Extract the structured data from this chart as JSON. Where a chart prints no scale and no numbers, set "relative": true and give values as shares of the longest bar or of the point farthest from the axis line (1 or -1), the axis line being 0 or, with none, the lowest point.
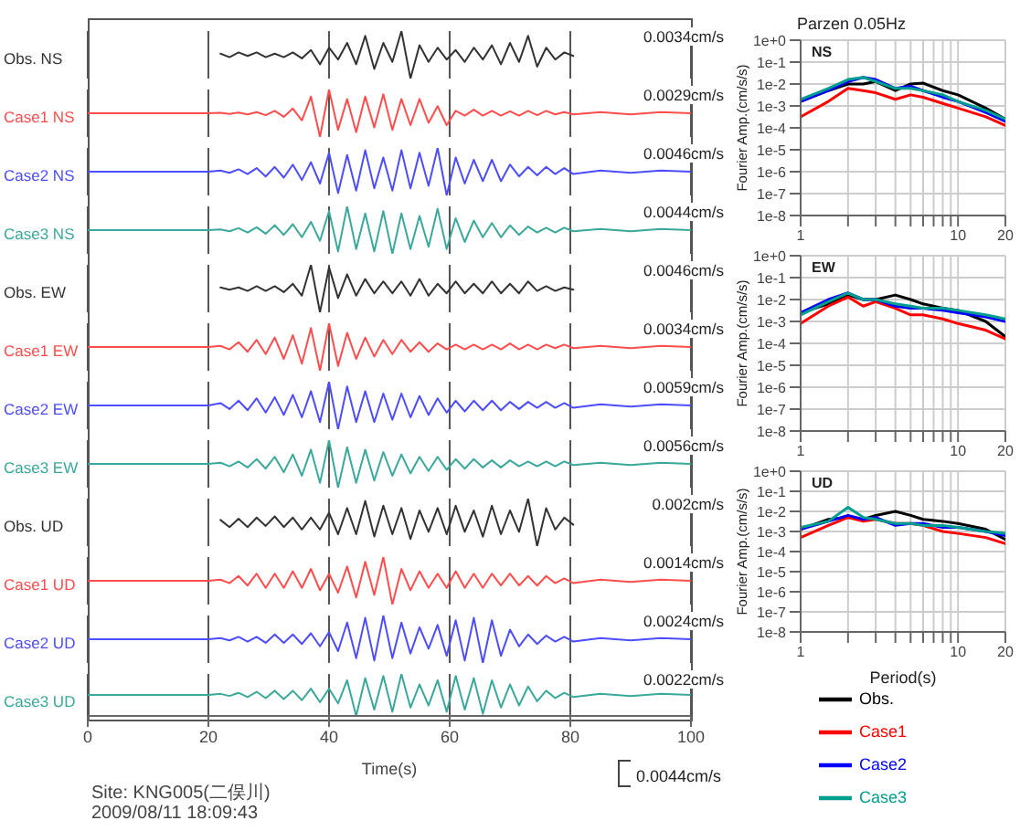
{
  "chart_data": [
    {
      "type": "line",
      "relative": true,
      "xlim": [
        0,
        100
      ],
      "xticks": [
        0,
        20,
        40,
        60,
        80,
        100
      ],
      "grid": "x",
      "tick_labels": false,
      "annotations": [
        "0.0034cm/s"
      ],
      "x": [
        22,
        23.5,
        25,
        26.5,
        28,
        29.5,
        31,
        32.5,
        34,
        35.5,
        37,
        38.5,
        40,
        41.5,
        43,
        44.5,
        46,
        47.5,
        49,
        50.5,
        52,
        53.5,
        55,
        56.5,
        58,
        59.5,
        61,
        62.5,
        64,
        65.5,
        67,
        68.5,
        70,
        71.5,
        73,
        74.5,
        76,
        77.5,
        79,
        80.5
      ],
      "series": [
        {
          "name": "Obs. NS",
          "color": "#333333",
          "values": [
            0.525,
            0.45,
            0.55,
            0.475,
            0.55,
            0.45,
            0.525,
            0.45,
            0.55,
            0.425,
            0.6,
            0.3,
            0.65,
            0.4,
            0.75,
            0.3,
            0.9,
            0.2,
            0.75,
            0.35,
            1,
            0,
            0.7,
            0.35,
            0.65,
            0.4,
            0.6,
            0.35,
            0.65,
            0.4,
            0.7,
            0.3,
            0.75,
            0.35,
            0.9,
            0.25,
            0.65,
            0.4,
            0.55,
            0.475
          ]
        }
      ]
    },
    {
      "type": "line",
      "relative": true,
      "xlim": [
        0,
        100
      ],
      "xticks": [
        0,
        20,
        40,
        60,
        80,
        100
      ],
      "grid": "x",
      "tick_labels": false,
      "annotations": [
        "0.0029cm/s"
      ],
      "x": [
        0,
        20,
        22,
        23.5,
        25,
        26.5,
        28,
        29.5,
        31,
        32.5,
        34,
        35.5,
        37,
        38.5,
        40,
        41.5,
        43,
        44.5,
        46,
        47.5,
        49,
        50.5,
        52,
        53.5,
        55,
        56.5,
        58,
        59.5,
        61,
        62.5,
        64,
        65.5,
        67,
        68.5,
        70,
        71.5,
        73,
        74.5,
        76,
        77.5,
        79,
        80.5,
        85,
        90,
        95,
        100
      ],
      "series": [
        {
          "name": "Case1 NS",
          "color": "#ff4d4d",
          "values": [
            0.5,
            0.5,
            0.51,
            0.485,
            0.515,
            0.475,
            0.525,
            0.46,
            0.55,
            0.425,
            0.6,
            0.35,
            0.85,
            0,
            1,
            0.15,
            0.8,
            0.1,
            0.85,
            0.2,
            0.9,
            0.15,
            0.8,
            0.25,
            0.8,
            0.3,
            0.65,
            0.25,
            0.55,
            0.45,
            0.575,
            0.45,
            0.55,
            0.45,
            0.54,
            0.45,
            0.55,
            0.46,
            0.55,
            0.475,
            0.525,
            0.475,
            0.525,
            0.475,
            0.525,
            0.5
          ]
        }
      ]
    },
    {
      "type": "line",
      "relative": true,
      "xlim": [
        0,
        100
      ],
      "xticks": [
        0,
        20,
        40,
        60,
        80,
        100
      ],
      "grid": "x",
      "tick_labels": false,
      "annotations": [
        "0.0046cm/s"
      ],
      "x": [
        0,
        20,
        22,
        23.5,
        25,
        26.5,
        28,
        29.5,
        31,
        32.5,
        34,
        35.5,
        37,
        38.5,
        40,
        41.5,
        43,
        44.5,
        46,
        47.5,
        49,
        50.5,
        52,
        53.5,
        55,
        56.5,
        58,
        59.5,
        61,
        62.5,
        64,
        65.5,
        67,
        68.5,
        70,
        71.5,
        73,
        74.5,
        76,
        77.5,
        79,
        80.5,
        85,
        90,
        95,
        100
      ],
      "series": [
        {
          "name": "Case2 NS",
          "color": "#4d4dff",
          "values": [
            0.5,
            0.5,
            0.525,
            0.475,
            0.55,
            0.45,
            0.575,
            0.4,
            0.6,
            0.375,
            0.65,
            0.325,
            0.7,
            0.25,
            0.9,
            0.05,
            0.85,
            0.1,
            0.95,
            0.15,
            0.8,
            0.1,
            0.95,
            0.15,
            0.9,
            0.2,
            1,
            0,
            0.8,
            0.25,
            0.75,
            0.3,
            0.75,
            0.3,
            0.65,
            0.4,
            0.6,
            0.425,
            0.6,
            0.45,
            0.575,
            0.45,
            0.525,
            0.475,
            0.525,
            0.5
          ]
        }
      ]
    },
    {
      "type": "line",
      "relative": true,
      "xlim": [
        0,
        100
      ],
      "xticks": [
        0,
        20,
        40,
        60,
        80,
        100
      ],
      "grid": "x",
      "tick_labels": false,
      "annotations": [
        "0.0044cm/s"
      ],
      "x": [
        0,
        20,
        22,
        23.5,
        25,
        26.5,
        28,
        29.5,
        31,
        32.5,
        34,
        35.5,
        37,
        38.5,
        40,
        41.5,
        43,
        44.5,
        46,
        47.5,
        49,
        50.5,
        52,
        53.5,
        55,
        56.5,
        58,
        59.5,
        61,
        62.5,
        64,
        65.5,
        67,
        68.5,
        70,
        71.5,
        73,
        74.5,
        76,
        77.5,
        79,
        80.5,
        85,
        90,
        95,
        100
      ],
      "series": [
        {
          "name": "Case3 NS",
          "color": "#3aa89a",
          "values": [
            0.5,
            0.5,
            0.515,
            0.475,
            0.54,
            0.45,
            0.56,
            0.425,
            0.6,
            0.4,
            0.625,
            0.35,
            0.675,
            0.275,
            0.9,
            0.05,
            1,
            0.1,
            0.85,
            0.05,
            0.9,
            0,
            0.85,
            0.1,
            0.8,
            0.15,
            0.95,
            0.1,
            0.75,
            0.25,
            0.7,
            0.35,
            0.65,
            0.35,
            0.6,
            0.4,
            0.575,
            0.45,
            0.55,
            0.45,
            0.55,
            0.475,
            0.525,
            0.475,
            0.525,
            0.5
          ]
        }
      ]
    },
    {
      "type": "line",
      "relative": true,
      "xlim": [
        0,
        100
      ],
      "xticks": [
        0,
        20,
        40,
        60,
        80,
        100
      ],
      "grid": "x",
      "tick_labels": false,
      "annotations": [
        "0.0046cm/s"
      ],
      "x": [
        22,
        23.5,
        25,
        26.5,
        28,
        29.5,
        31,
        32.5,
        34,
        35.5,
        37,
        38.5,
        40,
        41.5,
        43,
        44.5,
        46,
        47.5,
        49,
        50.5,
        52,
        53.5,
        55,
        56.5,
        58,
        59.5,
        61,
        62.5,
        64,
        65.5,
        67,
        68.5,
        70,
        71.5,
        73,
        74.5,
        76,
        77.5,
        79,
        80.5
      ],
      "series": [
        {
          "name": "Obs. EW",
          "color": "#333333",
          "values": [
            0.525,
            0.475,
            0.525,
            0.45,
            0.55,
            0.45,
            0.55,
            0.425,
            0.6,
            0.35,
            1,
            0,
            0.95,
            0.3,
            0.8,
            0.35,
            0.7,
            0.4,
            0.65,
            0.4,
            0.65,
            0.35,
            0.7,
            0.35,
            0.6,
            0.4,
            0.65,
            0.4,
            0.6,
            0.4,
            0.65,
            0.4,
            0.6,
            0.4,
            0.65,
            0.45,
            0.55,
            0.45,
            0.525,
            0.475
          ]
        }
      ]
    },
    {
      "type": "line",
      "relative": true,
      "xlim": [
        0,
        100
      ],
      "xticks": [
        0,
        20,
        40,
        60,
        80,
        100
      ],
      "grid": "x",
      "tick_labels": false,
      "annotations": [
        "0.0034cm/s"
      ],
      "x": [
        0,
        20,
        22,
        23.5,
        25,
        26.5,
        28,
        29.5,
        31,
        32.5,
        34,
        35.5,
        37,
        38.5,
        40,
        41.5,
        43,
        44.5,
        46,
        47.5,
        49,
        50.5,
        52,
        53.5,
        55,
        56.5,
        58,
        59.5,
        61,
        62.5,
        64,
        65.5,
        67,
        68.5,
        70,
        71.5,
        73,
        74.5,
        76,
        77.5,
        79,
        80.5,
        85,
        90,
        95,
        100
      ],
      "series": [
        {
          "name": "Case1 EW",
          "color": "#ff4d4d",
          "values": [
            0.5,
            0.5,
            0.525,
            0.45,
            0.6,
            0.4,
            0.65,
            0.35,
            0.7,
            0.25,
            0.75,
            0.15,
            0.9,
            0,
            1,
            0.1,
            0.8,
            0.25,
            0.7,
            0.3,
            0.65,
            0.35,
            0.65,
            0.4,
            0.6,
            0.4,
            0.575,
            0.45,
            0.55,
            0.45,
            0.55,
            0.45,
            0.55,
            0.45,
            0.575,
            0.45,
            0.55,
            0.45,
            0.55,
            0.475,
            0.55,
            0.475,
            0.525,
            0.475,
            0.525,
            0.5
          ]
        }
      ]
    },
    {
      "type": "line",
      "relative": true,
      "xlim": [
        0,
        100
      ],
      "xticks": [
        0,
        20,
        40,
        60,
        80,
        100
      ],
      "grid": "x",
      "tick_labels": false,
      "annotations": [
        "0.0059cm/s"
      ],
      "x": [
        0,
        20,
        22,
        23.5,
        25,
        26.5,
        28,
        29.5,
        31,
        32.5,
        34,
        35.5,
        37,
        38.5,
        40,
        41.5,
        43,
        44.5,
        46,
        47.5,
        49,
        50.5,
        52,
        53.5,
        55,
        56.5,
        58,
        59.5,
        61,
        62.5,
        64,
        65.5,
        67,
        68.5,
        70,
        71.5,
        73,
        74.5,
        76,
        77.5,
        79,
        80.5,
        85,
        90,
        95,
        100
      ],
      "series": [
        {
          "name": "Case2 EW",
          "color": "#4d4dff",
          "values": [
            0.5,
            0.5,
            0.55,
            0.425,
            0.6,
            0.4,
            0.65,
            0.35,
            0.675,
            0.3,
            0.725,
            0.25,
            0.8,
            0.15,
            1,
            0,
            0.9,
            0.15,
            0.8,
            0.15,
            0.75,
            0.2,
            0.75,
            0.25,
            0.7,
            0.3,
            0.65,
            0.35,
            0.6,
            0.375,
            0.6,
            0.4,
            0.6,
            0.4,
            0.575,
            0.425,
            0.575,
            0.45,
            0.575,
            0.45,
            0.55,
            0.45,
            0.525,
            0.475,
            0.525,
            0.5
          ]
        }
      ]
    },
    {
      "type": "line",
      "relative": true,
      "xlim": [
        0,
        100
      ],
      "xticks": [
        0,
        20,
        40,
        60,
        80,
        100
      ],
      "grid": "x",
      "tick_labels": false,
      "annotations": [
        "0.0056cm/s"
      ],
      "x": [
        0,
        20,
        22,
        23.5,
        25,
        26.5,
        28,
        29.5,
        31,
        32.5,
        34,
        35.5,
        37,
        38.5,
        40,
        41.5,
        43,
        44.5,
        46,
        47.5,
        49,
        50.5,
        52,
        53.5,
        55,
        56.5,
        58,
        59.5,
        61,
        62.5,
        64,
        65.5,
        67,
        68.5,
        70,
        71.5,
        73,
        74.5,
        76,
        77.5,
        79,
        80.5,
        85,
        90,
        95,
        100
      ],
      "series": [
        {
          "name": "Case3 EW",
          "color": "#3aa89a",
          "values": [
            0.5,
            0.5,
            0.525,
            0.45,
            0.55,
            0.425,
            0.6,
            0.4,
            0.65,
            0.325,
            0.7,
            0.25,
            0.8,
            0.1,
            1,
            0,
            0.85,
            0.1,
            0.8,
            0.15,
            0.75,
            0.25,
            0.7,
            0.3,
            0.65,
            0.35,
            0.65,
            0.375,
            0.6,
            0.4,
            0.6,
            0.425,
            0.575,
            0.425,
            0.575,
            0.45,
            0.55,
            0.45,
            0.55,
            0.45,
            0.55,
            0.475,
            0.525,
            0.475,
            0.525,
            0.5
          ]
        }
      ]
    },
    {
      "type": "line",
      "relative": true,
      "xlim": [
        0,
        100
      ],
      "xticks": [
        0,
        20,
        40,
        60,
        80,
        100
      ],
      "grid": "x",
      "tick_labels": false,
      "annotations": [
        "0.002cm/s"
      ],
      "x": [
        22,
        23.5,
        25,
        26.5,
        28,
        29.5,
        31,
        32.5,
        34,
        35.5,
        37,
        38.5,
        40,
        41.5,
        43,
        44.5,
        46,
        47.5,
        49,
        50.5,
        52,
        53.5,
        55,
        56.5,
        58,
        59.5,
        61,
        62.5,
        64,
        65.5,
        67,
        68.5,
        70,
        71.5,
        73,
        74.5,
        76,
        77.5,
        79,
        80.5
      ],
      "series": [
        {
          "name": "Obs. UD",
          "color": "#333333",
          "values": [
            0.55,
            0.4,
            0.575,
            0.4,
            0.6,
            0.425,
            0.625,
            0.4,
            0.6,
            0.35,
            0.6,
            0.35,
            0.7,
            0.25,
            0.8,
            0.25,
            0.95,
            0.2,
            0.85,
            0.25,
            0.8,
            0.15,
            0.75,
            0.3,
            0.8,
            0.25,
            0.85,
            0.3,
            0.75,
            0.2,
            0.85,
            0.25,
            0.75,
            0.3,
            1,
            0,
            0.8,
            0.35,
            0.6,
            0.45
          ]
        }
      ]
    },
    {
      "type": "line",
      "relative": true,
      "xlim": [
        0,
        100
      ],
      "xticks": [
        0,
        20,
        40,
        60,
        80,
        100
      ],
      "grid": "x",
      "tick_labels": false,
      "annotations": [
        "0.0014cm/s"
      ],
      "x": [
        0,
        20,
        22,
        23.5,
        25,
        26.5,
        28,
        29.5,
        31,
        32.5,
        34,
        35.5,
        37,
        38.5,
        40,
        41.5,
        43,
        44.5,
        46,
        47.5,
        49,
        50.5,
        52,
        53.5,
        55,
        56.5,
        58,
        59.5,
        61,
        62.5,
        64,
        65.5,
        67,
        68.5,
        70,
        71.5,
        73,
        74.5,
        76,
        77.5,
        79,
        80.5,
        85,
        90,
        95,
        100
      ],
      "series": [
        {
          "name": "Case1 UD",
          "color": "#ff4d4d",
          "values": [
            0.5,
            0.5,
            0.525,
            0.45,
            0.6,
            0.4,
            0.65,
            0.35,
            0.65,
            0.35,
            0.7,
            0.35,
            0.75,
            0.3,
            0.65,
            0.25,
            0.8,
            0.15,
            0.9,
            0.2,
            1,
            0,
            0.75,
            0.3,
            0.7,
            0.35,
            0.65,
            0.35,
            0.7,
            0.35,
            0.65,
            0.35,
            0.65,
            0.4,
            0.65,
            0.4,
            0.6,
            0.4,
            0.6,
            0.45,
            0.55,
            0.45,
            0.525,
            0.475,
            0.525,
            0.5
          ]
        }
      ]
    },
    {
      "type": "line",
      "relative": true,
      "xlim": [
        0,
        100
      ],
      "xticks": [
        0,
        20,
        40,
        60,
        80,
        100
      ],
      "grid": "x",
      "tick_labels": false,
      "annotations": [
        "0.0024cm/s"
      ],
      "x": [
        0,
        20,
        22,
        23.5,
        25,
        26.5,
        28,
        29.5,
        31,
        32.5,
        34,
        35.5,
        37,
        38.5,
        40,
        41.5,
        43,
        44.5,
        46,
        47.5,
        49,
        50.5,
        52,
        53.5,
        55,
        56.5,
        58,
        59.5,
        61,
        62.5,
        64,
        65.5,
        67,
        68.5,
        70,
        71.5,
        73,
        74.5,
        76,
        77.5,
        79,
        80.5,
        85,
        90,
        95,
        100
      ],
      "series": [
        {
          "name": "Case2 UD",
          "color": "#4d4dff",
          "values": [
            0.5,
            0.5,
            0.525,
            0.475,
            0.55,
            0.45,
            0.55,
            0.425,
            0.6,
            0.425,
            0.6,
            0.4,
            0.625,
            0.35,
            0.65,
            0.25,
            0.85,
            0.1,
            0.95,
            0.05,
            1,
            0.1,
            0.85,
            0.2,
            0.75,
            0.3,
            0.8,
            0.15,
            0.9,
            0.05,
            0.95,
            0,
            0.9,
            0.15,
            0.7,
            0.35,
            0.6,
            0.4,
            0.575,
            0.45,
            0.55,
            0.45,
            0.525,
            0.475,
            0.525,
            0.5
          ]
        }
      ]
    },
    {
      "type": "line",
      "relative": true,
      "xlim": [
        0,
        100
      ],
      "xticks": [
        0,
        20,
        40,
        60,
        80,
        100
      ],
      "grid": "x",
      "tick_labels": "x",
      "xlabel": "Time(s)",
      "annotations": [
        "0.0022cm/s"
      ],
      "x": [
        0,
        20,
        22,
        23.5,
        25,
        26.5,
        28,
        29.5,
        31,
        32.5,
        34,
        35.5,
        37,
        38.5,
        40,
        41.5,
        43,
        44.5,
        46,
        47.5,
        49,
        50.5,
        52,
        53.5,
        55,
        56.5,
        58,
        59.5,
        61,
        62.5,
        64,
        65.5,
        67,
        68.5,
        70,
        71.5,
        73,
        74.5,
        76,
        77.5,
        79,
        80.5,
        85,
        90,
        95,
        100
      ],
      "series": [
        {
          "name": "Case3 UD",
          "color": "#3aa89a",
          "values": [
            0.5,
            0.5,
            0.525,
            0.475,
            0.55,
            0.45,
            0.575,
            0.425,
            0.6,
            0.4,
            0.6,
            0.375,
            0.65,
            0.325,
            0.65,
            0.3,
            0.85,
            0,
            0.9,
            0.15,
            0.95,
            0.1,
            1,
            0.2,
            0.75,
            0.25,
            0.85,
            0.1,
            0.95,
            0.15,
            0.9,
            0.05,
            0.85,
            0.2,
            0.75,
            0.25,
            0.7,
            0.35,
            0.6,
            0.425,
            0.55,
            0.45,
            0.525,
            0.475,
            0.525,
            0.5
          ]
        }
      ]
    },
    {
      "type": "line",
      "title": "Parzen 0.05Hz",
      "subtitle": "NS",
      "ylabel": "Fourier Amp.(cm/s/s)",
      "log": "xy",
      "grid": true,
      "xlim": [
        1,
        20
      ],
      "xticks": [
        1,
        {
          "value": 2,
          "label": null
        },
        {
          "value": 3,
          "label": null
        },
        {
          "value": 4,
          "label": null
        },
        {
          "value": 5,
          "label": null
        },
        {
          "value": 6,
          "label": null
        },
        {
          "value": 7,
          "label": null
        },
        {
          "value": 8,
          "label": null
        },
        {
          "value": 9,
          "label": null
        },
        10,
        20
      ],
      "ylim": [
        1e-08,
        1
      ],
      "yticks": [
        {
          "value": 1,
          "label": "1e+0"
        },
        {
          "value": 0.1,
          "label": "1e-1"
        },
        {
          "value": 0.01,
          "label": "1e-2"
        },
        {
          "value": 0.001,
          "label": "1e-3"
        },
        {
          "value": 0.0001,
          "label": "1e-4"
        },
        {
          "value": 1e-05,
          "label": "1e-5"
        },
        {
          "value": 1e-06,
          "label": "1e-6"
        },
        {
          "value": 1e-07,
          "label": "1e-7"
        },
        {
          "value": 1e-08,
          "label": "1e-8"
        }
      ],
      "x": [
        1,
        1.5,
        2,
        2.5,
        3,
        4,
        5,
        6,
        8,
        10,
        15,
        20
      ],
      "series": [
        {
          "color": "#000000",
          "values": [
            0.0016,
            0.005,
            0.01,
            0.01,
            0.013,
            0.005,
            0.01,
            0.011,
            0.005,
            0.0032,
            0.0008,
            0.00025
          ]
        },
        {
          "color": "#ff0000",
          "values": [
            0.00032,
            0.0016,
            0.0063,
            0.005,
            0.004,
            0.002,
            0.0032,
            0.0025,
            0.0013,
            0.0008,
            0.00032,
            0.00013
          ]
        },
        {
          "color": "#0000ff",
          "values": [
            0.0016,
            0.005,
            0.013,
            0.02,
            0.016,
            0.0063,
            0.008,
            0.005,
            0.0025,
            0.0016,
            0.0005,
            0.0002
          ]
        },
        {
          "color": "#009e8e",
          "values": [
            0.002,
            0.0063,
            0.016,
            0.02,
            0.013,
            0.0063,
            0.0063,
            0.005,
            0.0032,
            0.0016,
            0.00063,
            0.00025
          ]
        }
      ]
    },
    {
      "type": "line",
      "subtitle": "EW",
      "ylabel": "Fourier Amp.(cm/s/s)",
      "log": "xy",
      "grid": true,
      "xlim": [
        1,
        20
      ],
      "xticks": [
        1,
        {
          "value": 2,
          "label": null
        },
        {
          "value": 3,
          "label": null
        },
        {
          "value": 4,
          "label": null
        },
        {
          "value": 5,
          "label": null
        },
        {
          "value": 6,
          "label": null
        },
        {
          "value": 7,
          "label": null
        },
        {
          "value": 8,
          "label": null
        },
        {
          "value": 9,
          "label": null
        },
        10,
        20
      ],
      "ylim": [
        1e-08,
        1
      ],
      "yticks": [
        {
          "value": 1,
          "label": "1e+0"
        },
        {
          "value": 0.1,
          "label": "1e-1"
        },
        {
          "value": 0.01,
          "label": "1e-2"
        },
        {
          "value": 0.001,
          "label": "1e-3"
        },
        {
          "value": 0.0001,
          "label": "1e-4"
        },
        {
          "value": 1e-05,
          "label": "1e-5"
        },
        {
          "value": 1e-06,
          "label": "1e-6"
        },
        {
          "value": 1e-07,
          "label": "1e-7"
        },
        {
          "value": 1e-08,
          "label": "1e-8"
        }
      ],
      "x": [
        1,
        1.5,
        2,
        2.5,
        3,
        4,
        5,
        6,
        8,
        10,
        15,
        20
      ],
      "series": [
        {
          "color": "#000000",
          "values": [
            0.0025,
            0.0063,
            0.016,
            0.01,
            0.01,
            0.016,
            0.01,
            0.0063,
            0.004,
            0.0032,
            0.001,
            0.0002
          ]
        },
        {
          "color": "#ff0000",
          "values": [
            0.0008,
            0.005,
            0.013,
            0.005,
            0.008,
            0.004,
            0.002,
            0.002,
            0.0013,
            0.0008,
            0.0004,
            0.00016
          ]
        },
        {
          "color": "#0000ff",
          "values": [
            0.0025,
            0.01,
            0.02,
            0.01,
            0.01,
            0.005,
            0.004,
            0.004,
            0.0032,
            0.0025,
            0.0016,
            0.001
          ]
        },
        {
          "color": "#009e8e",
          "values": [
            0.002,
            0.008,
            0.02,
            0.01,
            0.01,
            0.0063,
            0.005,
            0.004,
            0.004,
            0.0032,
            0.002,
            0.0013
          ]
        }
      ]
    },
    {
      "type": "line",
      "subtitle": "UD",
      "ylabel": "Fourier Amp.(cm/s/s)",
      "xlabel": "Period(s)",
      "log": "xy",
      "grid": true,
      "legend": "bottom",
      "xlim": [
        1,
        20
      ],
      "xticks": [
        1,
        {
          "value": 2,
          "label": null
        },
        {
          "value": 3,
          "label": null
        },
        {
          "value": 4,
          "label": null
        },
        {
          "value": 5,
          "label": null
        },
        {
          "value": 6,
          "label": null
        },
        {
          "value": 7,
          "label": null
        },
        {
          "value": 8,
          "label": null
        },
        {
          "value": 9,
          "label": null
        },
        10,
        20
      ],
      "ylim": [
        1e-08,
        1
      ],
      "yticks": [
        {
          "value": 1,
          "label": "1e+0"
        },
        {
          "value": 0.1,
          "label": "1e-1"
        },
        {
          "value": 0.01,
          "label": "1e-2"
        },
        {
          "value": 0.001,
          "label": "1e-3"
        },
        {
          "value": 0.0001,
          "label": "1e-4"
        },
        {
          "value": 1e-05,
          "label": "1e-5"
        },
        {
          "value": 1e-06,
          "label": "1e-6"
        },
        {
          "value": 1e-07,
          "label": "1e-7"
        },
        {
          "value": 1e-08,
          "label": "1e-8"
        }
      ],
      "x": [
        1,
        1.5,
        2,
        2.5,
        3,
        4,
        5,
        6,
        8,
        10,
        15,
        20
      ],
      "series": [
        {
          "name": "Obs.",
          "color": "#000000",
          "values": [
            0.0013,
            0.004,
            0.005,
            0.004,
            0.0063,
            0.01,
            0.0063,
            0.004,
            0.0032,
            0.0025,
            0.0013,
            0.0004
          ]
        },
        {
          "name": "Case1",
          "color": "#ff0000",
          "values": [
            0.0005,
            0.002,
            0.005,
            0.0032,
            0.004,
            0.0025,
            0.0025,
            0.002,
            0.001,
            0.0008,
            0.0005,
            0.00025
          ]
        },
        {
          "name": "Case2",
          "color": "#0000ff",
          "values": [
            0.0013,
            0.0032,
            0.0063,
            0.004,
            0.005,
            0.002,
            0.0025,
            0.0025,
            0.0016,
            0.0016,
            0.001,
            0.00063
          ]
        },
        {
          "name": "Case3",
          "color": "#009e8e",
          "values": [
            0.0016,
            0.0032,
            0.016,
            0.005,
            0.004,
            0.0025,
            0.0025,
            0.002,
            0.002,
            0.0016,
            0.001,
            0.0008
          ]
        }
      ]
    },
    {
      "type": "other",
      "annotations": [
        "Site: KNG005(二俣川)",
        "2009/08/11 18:09:43",
        "0.0044cm/s"
      ]
    }
  ]
}
